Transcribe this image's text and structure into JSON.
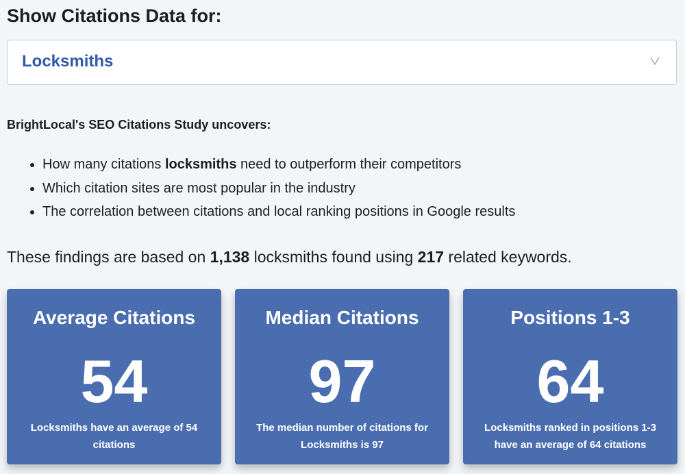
{
  "heading": "Show Citations Data for:",
  "select": {
    "value": "Locksmiths"
  },
  "intro": "BrightLocal's SEO Citations Study uncovers:",
  "bullets": [
    [
      "How many citations ",
      "locksmiths",
      " need to outperform their competitors"
    ],
    [
      "Which citation sites are most popular in the industry"
    ],
    [
      "The correlation between citations and local ranking positions in Google results"
    ]
  ],
  "findings": [
    "These findings are based on ",
    "1,138",
    " locksmiths found using ",
    "217",
    " related keywords."
  ],
  "cards": [
    {
      "title": "Average Citations",
      "value": 54,
      "description": "Locksmiths have an average of 54 citations"
    },
    {
      "title": "Median Citations",
      "value": 97,
      "description": "The median number of citations for Locksmiths is 97"
    },
    {
      "title": "Positions 1-3",
      "value": 64,
      "description": "Locksmiths ranked in positions 1-3 have an average of 64 citations"
    }
  ]
}
